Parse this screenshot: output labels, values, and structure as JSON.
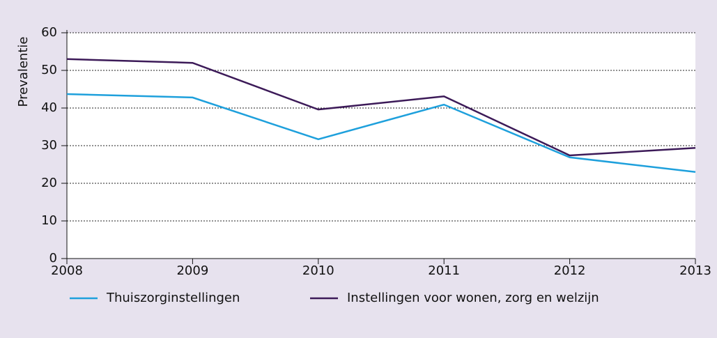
{
  "chart_data": {
    "type": "line",
    "y_label": "Prevalentie",
    "x": [
      2008,
      2009,
      2010,
      2011,
      2012,
      2013
    ],
    "xlim": [
      2008,
      2013
    ],
    "xticks": [
      2008,
      2009,
      2010,
      2011,
      2012,
      2013
    ],
    "ylim": [
      0,
      60
    ],
    "yticks": [
      0,
      10,
      20,
      30,
      40,
      50,
      60
    ],
    "grid": true,
    "legend": "bottom",
    "series": [
      {
        "name": "Thuiszorginstellingen",
        "color": "#1ea0dc",
        "values": [
          43.7,
          42.8,
          31.7,
          40.9,
          26.9,
          23.0
        ]
      },
      {
        "name": "Instellingen voor wonen, zorg en welzijn",
        "color": "#3c1a58",
        "values": [
          53.0,
          52.0,
          39.6,
          43.1,
          27.4,
          29.4
        ]
      }
    ]
  }
}
